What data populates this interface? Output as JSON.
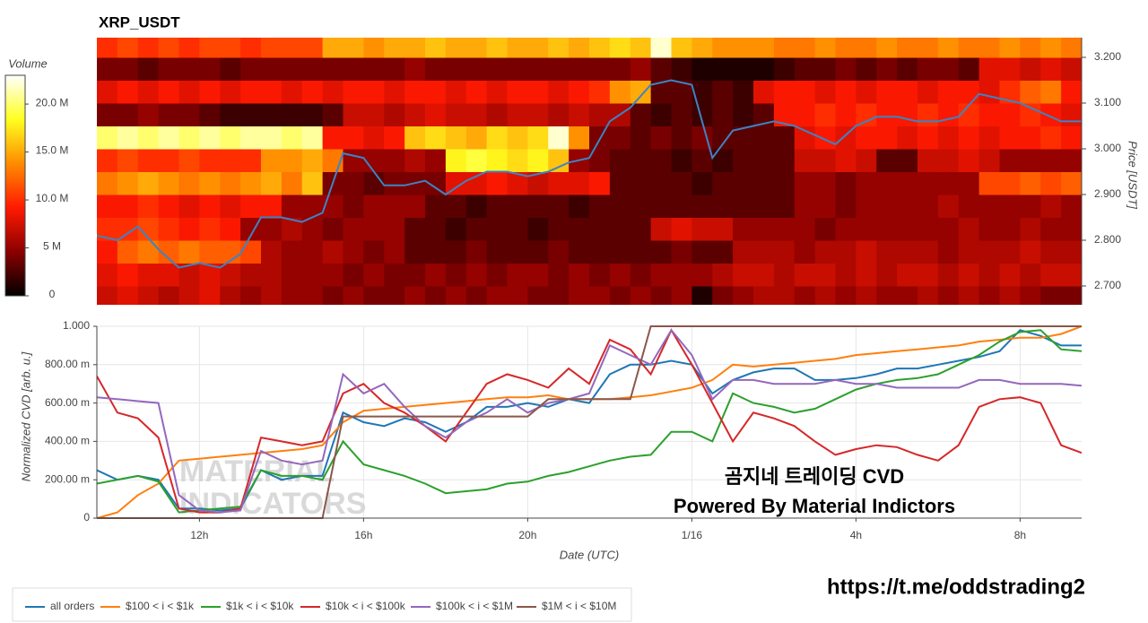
{
  "chart_data": [
    {
      "type": "heatmap",
      "title": "XRP_USDT",
      "time_bins": [
        9.5,
        10,
        10.5,
        11,
        11.5,
        12,
        12.5,
        13,
        13.5,
        14,
        14.5,
        15,
        15.5,
        16,
        16.5,
        17,
        17.5,
        18,
        18.5,
        19,
        19.5,
        20,
        20.5,
        21,
        21.5,
        22,
        22.5,
        23,
        23.5,
        24,
        24.5,
        25,
        25.5,
        26,
        26.5,
        27,
        27.5,
        28,
        28.5,
        29,
        29.5,
        30,
        30.5,
        31,
        31.5,
        32,
        32.5,
        33,
        33.5
      ],
      "price_bins": [
        2.65,
        2.7,
        2.75,
        2.8,
        2.85,
        2.9,
        2.95,
        3,
        3.05,
        3.1,
        3.15,
        3.2,
        3.25
      ],
      "z": [
        [
          7,
          8,
          7,
          6,
          7,
          8,
          6,
          5,
          6,
          5,
          5,
          4,
          5,
          4,
          4,
          5,
          4,
          5,
          4,
          5,
          5,
          4,
          4,
          5,
          5,
          4,
          5,
          4,
          5,
          1,
          4,
          5,
          6,
          6,
          5,
          6,
          5,
          6,
          5,
          5,
          6,
          5,
          6,
          5,
          6,
          5,
          4,
          4
        ],
        [
          8,
          9,
          8,
          8,
          7,
          8,
          7,
          6,
          6,
          5,
          5,
          5,
          4,
          5,
          4,
          4,
          5,
          4,
          5,
          4,
          5,
          5,
          4,
          5,
          4,
          5,
          4,
          5,
          5,
          5,
          6,
          7,
          7,
          6,
          7,
          7,
          6,
          7,
          6,
          7,
          7,
          6,
          7,
          6,
          7,
          6,
          7,
          7
        ],
        [
          9,
          12,
          13,
          12,
          13,
          12,
          12,
          11,
          6,
          5,
          5,
          6,
          5,
          4,
          5,
          3,
          3,
          3,
          4,
          3,
          3,
          3,
          4,
          3,
          3,
          3,
          3,
          3,
          4,
          3,
          3,
          6,
          6,
          6,
          5,
          6,
          6,
          7,
          6,
          6,
          6,
          5,
          6,
          6,
          6,
          7,
          6,
          6
        ],
        [
          10,
          10,
          11,
          10,
          9,
          10,
          9,
          5,
          5,
          6,
          5,
          4,
          5,
          5,
          5,
          3,
          3,
          2,
          3,
          3,
          3,
          2,
          3,
          3,
          3,
          3,
          3,
          7,
          8,
          7,
          7,
          5,
          5,
          5,
          5,
          4,
          5,
          5,
          5,
          5,
          5,
          5,
          6,
          5,
          5,
          6,
          5,
          5
        ],
        [
          9,
          9,
          10,
          9,
          8,
          9,
          8,
          9,
          9,
          5,
          5,
          5,
          4,
          5,
          5,
          5,
          3,
          3,
          2,
          3,
          3,
          3,
          3,
          2,
          3,
          3,
          3,
          3,
          3,
          3,
          3,
          3,
          3,
          3,
          5,
          5,
          4,
          5,
          5,
          5,
          5,
          6,
          5,
          5,
          5,
          5,
          6,
          5
        ],
        [
          13,
          14,
          15,
          14,
          13,
          14,
          13,
          14,
          15,
          13,
          16,
          4,
          4,
          3,
          4,
          4,
          4,
          8,
          8,
          9,
          8,
          7,
          8,
          8,
          9,
          3,
          3,
          3,
          3,
          2,
          3,
          3,
          3,
          3,
          5,
          5,
          4,
          5,
          5,
          5,
          5,
          5,
          5,
          11,
          11,
          12,
          11,
          12
        ],
        [
          10,
          11,
          10,
          10,
          11,
          10,
          10,
          10,
          14,
          14,
          15,
          13,
          5,
          5,
          5,
          6,
          5,
          18,
          19,
          18,
          17,
          18,
          16,
          5,
          4,
          3,
          3,
          3,
          2,
          3,
          2,
          3,
          3,
          3,
          7,
          7,
          8,
          7,
          3,
          3,
          7,
          7,
          8,
          7,
          5,
          5,
          5,
          5
        ],
        [
          20,
          21,
          20,
          21,
          20,
          21,
          20,
          21,
          21,
          20,
          21,
          9,
          9,
          8,
          9,
          16,
          17,
          16,
          15,
          17,
          16,
          17,
          22,
          14,
          4,
          4,
          3,
          4,
          3,
          4,
          3,
          3,
          3,
          3,
          8,
          9,
          8,
          9,
          9,
          8,
          9,
          8,
          9,
          8,
          9,
          9,
          10,
          9
        ],
        [
          4,
          4,
          5,
          4,
          4,
          3,
          2,
          2,
          2,
          2,
          2,
          3,
          7,
          7,
          6,
          7,
          8,
          7,
          7,
          6,
          7,
          7,
          6,
          7,
          6,
          6,
          3,
          2,
          3,
          2,
          3,
          2,
          3,
          9,
          9,
          10,
          9,
          10,
          9,
          9,
          10,
          9,
          10,
          9,
          9,
          10,
          9,
          8
        ],
        [
          8,
          9,
          8,
          9,
          8,
          9,
          8,
          9,
          9,
          8,
          9,
          8,
          9,
          9,
          8,
          9,
          9,
          8,
          9,
          8,
          9,
          9,
          8,
          9,
          10,
          14,
          15,
          3,
          3,
          2,
          3,
          2,
          8,
          9,
          9,
          8,
          9,
          8,
          9,
          9,
          8,
          9,
          9,
          8,
          10,
          12,
          13,
          9
        ],
        [
          4,
          4,
          3,
          4,
          4,
          4,
          3,
          4,
          4,
          4,
          4,
          4,
          4,
          4,
          4,
          5,
          4,
          4,
          4,
          4,
          4,
          4,
          4,
          4,
          4,
          4,
          5,
          3,
          2,
          1,
          1,
          1,
          1,
          2,
          3,
          3,
          4,
          3,
          4,
          3,
          4,
          4,
          3,
          8,
          8,
          7,
          8,
          7
        ],
        [
          10,
          11,
          10,
          11,
          10,
          11,
          11,
          10,
          11,
          11,
          11,
          15,
          15,
          14,
          15,
          15,
          16,
          15,
          15,
          16,
          15,
          15,
          16,
          15,
          16,
          17,
          16,
          22,
          16,
          15,
          14,
          14,
          14,
          13,
          13,
          14,
          13,
          13,
          14,
          13,
          13,
          14,
          13,
          13,
          14,
          13,
          14,
          13
        ]
      ],
      "colorscale": [
        "#000000",
        "#8b0000",
        "#ff1a00",
        "#ff8c00",
        "#ffff20",
        "#ffffff"
      ],
      "zlim": [
        0,
        23
      ],
      "colorbar_title": "Volume",
      "colorbar_ticks": [
        0,
        {
          "value": 5,
          "label": "5 M"
        },
        {
          "value": 10,
          "label": "10.0 M"
        },
        {
          "value": 15,
          "label": "15.0 M"
        },
        {
          "value": 20,
          "label": "20.0 M"
        }
      ],
      "xlim": [
        9.5,
        33.5
      ],
      "y2label": "Price [USDT]",
      "y2lim": [
        2.65,
        3.25
      ],
      "y2ticks": [
        {
          "value": 2.7,
          "label": "2.700"
        },
        {
          "value": 2.8,
          "label": "2.800"
        },
        {
          "value": 2.9,
          "label": "2.900"
        },
        {
          "value": 3.0,
          "label": "3.000"
        },
        {
          "value": 3.1,
          "label": "3.100"
        },
        {
          "value": 3.2,
          "label": "3.200"
        }
      ],
      "x": [
        9.5,
        10,
        10.5,
        11,
        11.5,
        12,
        12.5,
        13,
        13.5,
        14,
        14.5,
        15,
        15.5,
        16,
        16.5,
        17,
        17.5,
        18,
        18.5,
        19,
        19.5,
        20,
        20.5,
        21,
        21.5,
        22,
        22.5,
        23,
        23.5,
        24,
        24.5,
        25,
        25.5,
        26,
        26.5,
        27,
        27.5,
        28,
        28.5,
        29,
        29.5,
        30,
        30.5,
        31,
        31.5,
        32,
        32.5,
        33,
        33.5
      ],
      "series": [
        {
          "color": "#3b84c6",
          "axis": "y2",
          "values": [
            2.81,
            2.8,
            2.83,
            2.78,
            2.74,
            2.75,
            2.74,
            2.77,
            2.85,
            2.85,
            2.84,
            2.86,
            2.99,
            2.98,
            2.92,
            2.92,
            2.93,
            2.9,
            2.93,
            2.95,
            2.95,
            2.94,
            2.95,
            2.97,
            2.98,
            3.06,
            3.09,
            3.14,
            3.15,
            3.14,
            2.98,
            3.04,
            3.05,
            3.06,
            3.05,
            3.03,
            3.01,
            3.05,
            3.07,
            3.07,
            3.06,
            3.06,
            3.07,
            3.12,
            3.11,
            3.1,
            3.08,
            3.06,
            3.06
          ]
        }
      ]
    },
    {
      "type": "line",
      "x": [
        9.5,
        10,
        10.5,
        11,
        11.5,
        12,
        12.5,
        13,
        13.5,
        14,
        14.5,
        15,
        15.5,
        16,
        16.5,
        17,
        17.5,
        18,
        18.5,
        19,
        19.5,
        20,
        20.5,
        21,
        21.5,
        22,
        22.5,
        23,
        23.5,
        24,
        24.5,
        25,
        25.5,
        26,
        26.5,
        27,
        27.5,
        28,
        28.5,
        29,
        29.5,
        30,
        30.5,
        31,
        31.5,
        32,
        32.5,
        33,
        33.5
      ],
      "xlim": [
        9.5,
        33.5
      ],
      "xticks": [
        {
          "value": 12,
          "label": "12h"
        },
        {
          "value": 16,
          "label": "16h"
        },
        {
          "value": 20,
          "label": "20h"
        },
        {
          "value": 24,
          "label": "1/16"
        },
        {
          "value": 28,
          "label": "4h"
        },
        {
          "value": 32,
          "label": "8h"
        }
      ],
      "xlabel": "Date (UTC)",
      "ylim": [
        0,
        1
      ],
      "yticks": [
        0,
        {
          "value": 0.2,
          "label": "200.00 m"
        },
        {
          "value": 0.4,
          "label": "400.00 m"
        },
        {
          "value": 0.6,
          "label": "600.00 m"
        },
        {
          "value": 0.8,
          "label": "800.00 m"
        },
        {
          "value": 1,
          "label": "1.000"
        }
      ],
      "ylabel": "Normalized CVD [arb. u.]",
      "grid": true,
      "legend": "bottom",
      "watermark": [
        "MATERIAL",
        "INDICATORS"
      ],
      "annotations": [
        "곰지네 트레이딩 CVD",
        "Powered By Material Indictors"
      ],
      "series": [
        {
          "name": "all orders",
          "color": "#1f77b4",
          "values": [
            0.25,
            0.2,
            0.22,
            0.2,
            0.05,
            0.05,
            0.04,
            0.05,
            0.25,
            0.2,
            0.22,
            0.22,
            0.55,
            0.5,
            0.48,
            0.52,
            0.5,
            0.45,
            0.5,
            0.58,
            0.58,
            0.6,
            0.58,
            0.62,
            0.6,
            0.75,
            0.8,
            0.8,
            0.82,
            0.8,
            0.65,
            0.72,
            0.76,
            0.78,
            0.78,
            0.72,
            0.72,
            0.73,
            0.75,
            0.78,
            0.78,
            0.8,
            0.82,
            0.84,
            0.87,
            0.98,
            0.95,
            0.9,
            0.9
          ]
        },
        {
          "name": "$100 < i < $1k",
          "color": "#ff7f0e",
          "values": [
            0,
            0.03,
            0.12,
            0.18,
            0.3,
            0.31,
            0.32,
            0.33,
            0.34,
            0.35,
            0.36,
            0.38,
            0.5,
            0.56,
            0.57,
            0.58,
            0.59,
            0.6,
            0.61,
            0.62,
            0.63,
            0.63,
            0.64,
            0.62,
            0.62,
            0.62,
            0.63,
            0.64,
            0.66,
            0.68,
            0.72,
            0.8,
            0.79,
            0.8,
            0.81,
            0.82,
            0.83,
            0.85,
            0.86,
            0.87,
            0.88,
            0.89,
            0.9,
            0.92,
            0.93,
            0.94,
            0.94,
            0.96,
            1
          ]
        },
        {
          "name": "$1k < i < $10k",
          "color": "#2ca02c",
          "values": [
            0.18,
            0.2,
            0.22,
            0.19,
            0.03,
            0.04,
            0.05,
            0.06,
            0.25,
            0.22,
            0.22,
            0.2,
            0.4,
            0.28,
            0.25,
            0.22,
            0.18,
            0.13,
            0.14,
            0.15,
            0.18,
            0.19,
            0.22,
            0.24,
            0.27,
            0.3,
            0.32,
            0.33,
            0.45,
            0.45,
            0.4,
            0.65,
            0.6,
            0.58,
            0.55,
            0.57,
            0.62,
            0.67,
            0.7,
            0.72,
            0.73,
            0.75,
            0.8,
            0.85,
            0.92,
            0.97,
            0.98,
            0.88,
            0.87
          ]
        },
        {
          "name": "$10k < i < $100k",
          "color": "#d62728",
          "values": [
            0.74,
            0.55,
            0.52,
            0.42,
            0.05,
            0.03,
            0.03,
            0.05,
            0.42,
            0.4,
            0.38,
            0.4,
            0.65,
            0.7,
            0.6,
            0.55,
            0.48,
            0.4,
            0.55,
            0.7,
            0.75,
            0.72,
            0.68,
            0.78,
            0.7,
            0.93,
            0.88,
            0.75,
            0.98,
            0.8,
            0.6,
            0.4,
            0.55,
            0.52,
            0.48,
            0.4,
            0.33,
            0.36,
            0.38,
            0.37,
            0.33,
            0.3,
            0.38,
            0.58,
            0.62,
            0.63,
            0.6,
            0.38,
            0.34
          ]
        },
        {
          "name": "$100k < i < $1M",
          "color": "#9467bd",
          "values": [
            0.63,
            0.62,
            0.61,
            0.6,
            0.12,
            0.04,
            0.03,
            0.04,
            0.35,
            0.3,
            0.28,
            0.3,
            0.75,
            0.65,
            0.7,
            0.58,
            0.48,
            0.42,
            0.5,
            0.55,
            0.62,
            0.55,
            0.6,
            0.62,
            0.65,
            0.9,
            0.85,
            0.8,
            0.98,
            0.85,
            0.62,
            0.72,
            0.72,
            0.7,
            0.7,
            0.7,
            0.72,
            0.7,
            0.7,
            0.68,
            0.68,
            0.68,
            0.68,
            0.72,
            0.72,
            0.7,
            0.7,
            0.7,
            0.69
          ]
        },
        {
          "name": "$1M < i < $10M",
          "color": "#8c564b",
          "values": [
            0,
            0,
            0,
            0,
            0,
            0,
            0,
            0,
            0,
            0,
            0,
            0,
            0.53,
            0.53,
            0.53,
            0.53,
            0.53,
            0.53,
            0.53,
            0.53,
            0.53,
            0.53,
            0.62,
            0.62,
            0.62,
            0.62,
            0.62,
            1,
            1,
            1,
            1,
            1,
            1,
            1,
            1,
            1,
            1,
            1,
            1,
            1,
            1,
            1,
            1,
            1,
            1,
            1,
            1,
            1,
            1
          ]
        }
      ]
    }
  ],
  "footer": "https://t.me/oddstrading2"
}
